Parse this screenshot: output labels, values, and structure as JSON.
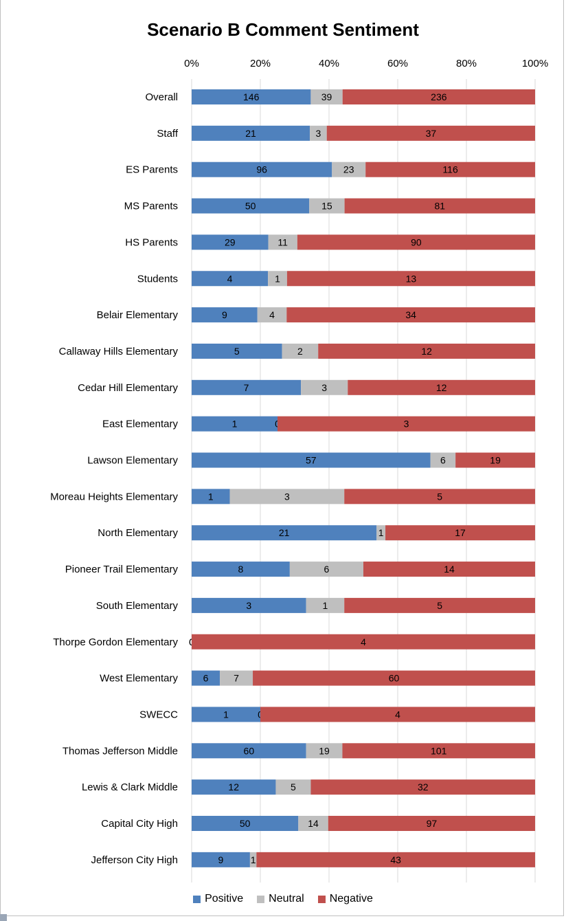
{
  "chart_data": {
    "type": "bar",
    "orientation": "horizontal",
    "stacked": "100%",
    "title": "Scenario B Comment Sentiment",
    "x_ticks": [
      "0%",
      "20%",
      "40%",
      "60%",
      "80%",
      "100%"
    ],
    "xlim": [
      0,
      100
    ],
    "grid": true,
    "legend_position": "bottom",
    "categories": [
      "Overall",
      "Staff",
      "ES Parents",
      "MS Parents",
      "HS Parents",
      "Students",
      "Belair Elementary",
      "Callaway Hills Elementary",
      "Cedar Hill Elementary",
      "East Elementary",
      "Lawson Elementary",
      "Moreau Heights Elementary",
      "North Elementary",
      "Pioneer Trail Elementary",
      "South Elementary",
      "Thorpe Gordon Elementary",
      "West Elementary",
      "SWECC",
      "Thomas Jefferson Middle",
      "Lewis & Clark Middle",
      "Capital City High",
      "Jefferson City High"
    ],
    "series": [
      {
        "name": "Positive",
        "color": "#4f81bd",
        "values": [
          146,
          21,
          96,
          50,
          29,
          4,
          9,
          5,
          7,
          1,
          57,
          1,
          21,
          8,
          3,
          0,
          6,
          1,
          60,
          12,
          50,
          9
        ]
      },
      {
        "name": "Neutral",
        "color": "#bfbfbf",
        "values": [
          39,
          3,
          23,
          15,
          11,
          1,
          4,
          2,
          3,
          0,
          6,
          3,
          1,
          6,
          1,
          0,
          7,
          0,
          19,
          5,
          14,
          1
        ]
      },
      {
        "name": "Negative",
        "color": "#c0504d",
        "values": [
          236,
          37,
          116,
          81,
          90,
          13,
          34,
          12,
          12,
          3,
          19,
          5,
          17,
          14,
          5,
          4,
          60,
          4,
          101,
          32,
          97,
          43
        ]
      }
    ]
  }
}
